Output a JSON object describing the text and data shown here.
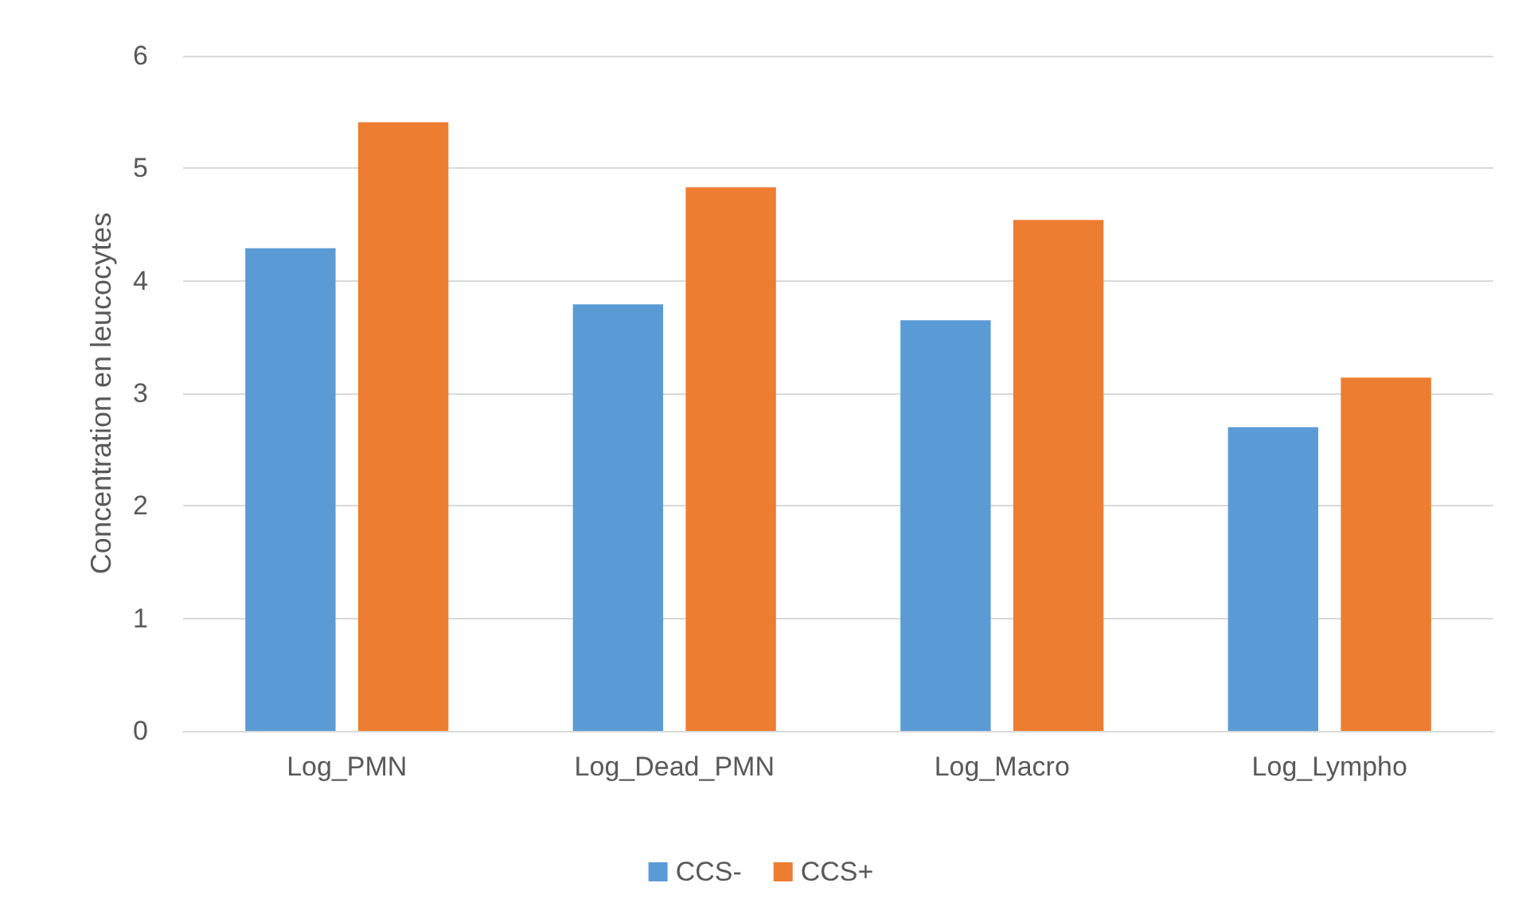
{
  "chart_data": {
    "type": "bar",
    "ylabel": "Concentration en leucocytes",
    "categories": [
      "Log_PMN",
      "Log_Dead_PMN",
      "Log_Macro",
      "Log_Lympho"
    ],
    "series": [
      {
        "name": "CCS-",
        "color": "#5b9bd5",
        "values": [
          4.29,
          3.79,
          3.65,
          2.7
        ]
      },
      {
        "name": "CCS+",
        "color": "#ed7d31",
        "values": [
          5.41,
          4.83,
          4.54,
          3.14
        ]
      }
    ],
    "ylim": [
      0,
      6
    ],
    "yticks": [
      0,
      1,
      2,
      3,
      4,
      5,
      6
    ],
    "grid": "y",
    "legend": "bottom"
  }
}
